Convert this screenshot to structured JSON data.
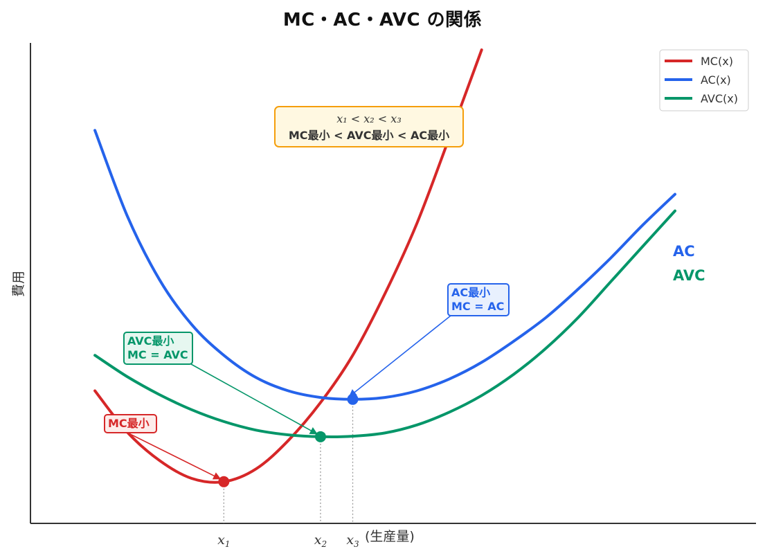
{
  "title": "MC・AC・AVC の関係",
  "chart_data": {
    "type": "line",
    "title": "MC・AC・AVC の関係",
    "xlabel": "(生産量)",
    "ylabel": "費用",
    "xlim": [
      0,
      10
    ],
    "ylim": [
      0,
      10
    ],
    "grid": false,
    "legend_position": "top-right",
    "series": [
      {
        "name": "MC(x)",
        "color": "#d62728",
        "x": [
          1,
          1.5,
          2,
          2.5,
          3,
          3.5,
          4,
          4.5,
          5,
          5.5,
          6,
          6.5,
          7
        ],
        "y": [
          2.8,
          1.93,
          1.33,
          0.95,
          0.88,
          1.15,
          1.75,
          2.55,
          3.55,
          4.85,
          6.35,
          8.15,
          10.0
        ]
      },
      {
        "name": "AC(x)",
        "color": "#2563eb",
        "x": [
          1,
          1.5,
          2,
          2.5,
          3,
          3.5,
          4,
          4.5,
          5,
          5.5,
          6,
          6.5,
          7,
          7.5,
          8,
          8.5,
          9,
          9.5,
          10
        ],
        "y": [
          8.3,
          6.5,
          5.15,
          4.2,
          3.55,
          3.08,
          2.8,
          2.66,
          2.62,
          2.66,
          2.8,
          3.05,
          3.4,
          3.85,
          4.35,
          4.95,
          5.6,
          6.3,
          6.95
        ]
      },
      {
        "name": "AVC(x)",
        "color": "#059669",
        "x": [
          1,
          1.5,
          2,
          2.5,
          3,
          3.5,
          4,
          4.5,
          5,
          5.5,
          6,
          6.5,
          7,
          7.5,
          8,
          8.5,
          9,
          9.5,
          10
        ],
        "y": [
          3.55,
          3.1,
          2.72,
          2.4,
          2.15,
          1.97,
          1.87,
          1.83,
          1.84,
          1.91,
          2.08,
          2.35,
          2.7,
          3.15,
          3.7,
          4.35,
          5.1,
          5.85,
          6.6
        ]
      }
    ],
    "points": [
      {
        "name": "MC最小",
        "x": 3,
        "y": 0.88,
        "color": "#d62728"
      },
      {
        "name": "AVC最小",
        "x": 4.5,
        "y": 1.83,
        "color": "#059669"
      },
      {
        "name": "AC最小",
        "x": 5,
        "y": 2.62,
        "color": "#2563eb"
      }
    ],
    "x_ticks": [
      {
        "base": "x",
        "sub": "1",
        "value": 3
      },
      {
        "base": "x",
        "sub": "2",
        "value": 4.5
      },
      {
        "base": "x",
        "sub": "3",
        "value": 5
      }
    ],
    "annotations": [
      {
        "lines": [
          "MC最小"
        ],
        "color": "#d62728",
        "target": "MC最小"
      },
      {
        "lines": [
          "AVC最小",
          "MC = AVC"
        ],
        "color": "#059669",
        "target": "AVC最小"
      },
      {
        "lines": [
          "AC最小",
          "MC = AC"
        ],
        "color": "#2563eb",
        "target": "AC最小"
      }
    ],
    "info_box": {
      "line1": "x₁ < x₂ < x₃",
      "line2": "MC最小 < AVC最小 < AC最小",
      "border_color": "#f59e0b",
      "fill_color": "#fff8e1"
    },
    "series_labels": [
      {
        "text": "AC",
        "color": "#2563eb"
      },
      {
        "text": "AVC",
        "color": "#059669"
      }
    ]
  }
}
